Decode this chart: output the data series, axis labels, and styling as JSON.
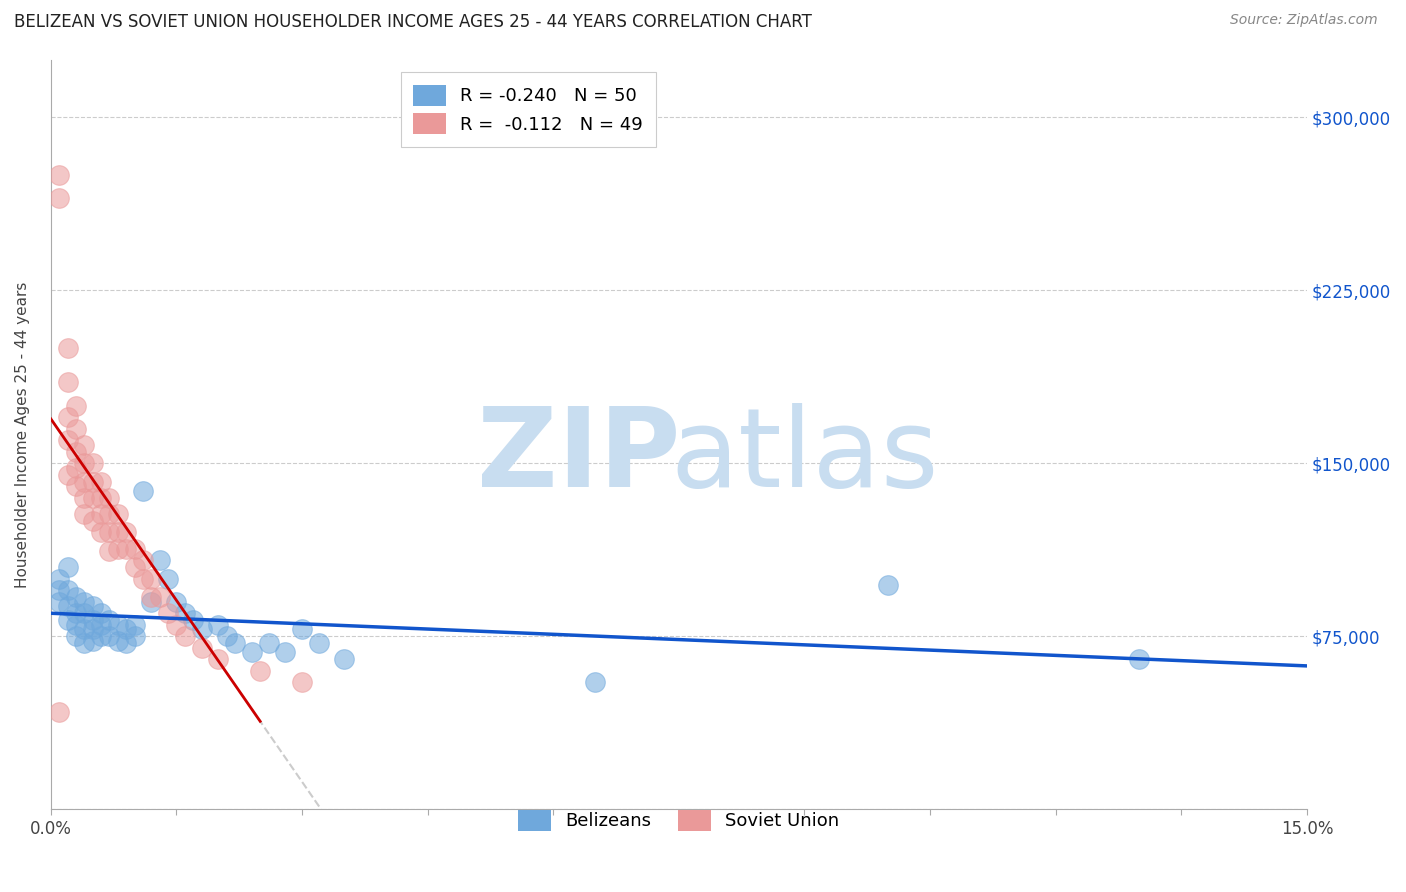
{
  "title": "BELIZEAN VS SOVIET UNION HOUSEHOLDER INCOME AGES 25 - 44 YEARS CORRELATION CHART",
  "source": "Source: ZipAtlas.com",
  "ylabel": "Householder Income Ages 25 - 44 years",
  "xlim": [
    0.0,
    0.15
  ],
  "ylim": [
    0,
    325000
  ],
  "yticks": [
    0,
    75000,
    150000,
    225000,
    300000
  ],
  "ytick_labels": [
    "",
    "$75,000",
    "$150,000",
    "$225,000",
    "$300,000"
  ],
  "xticks": [
    0.0,
    0.015,
    0.03,
    0.045,
    0.06,
    0.075,
    0.09,
    0.105,
    0.12,
    0.135,
    0.15
  ],
  "xtick_labels": [
    "0.0%",
    "",
    "",
    "",
    "",
    "",
    "",
    "",
    "",
    "",
    "15.0%"
  ],
  "belizean_color": "#6fa8dc",
  "soviet_color": "#ea9999",
  "belizean_trendline_color": "#1155cc",
  "soviet_trendline_color": "#cc0000",
  "dashed_line_color": "#cccccc",
  "belizean_R": -0.24,
  "belizean_N": 50,
  "soviet_R": -0.112,
  "soviet_N": 49,
  "background_color": "#ffffff",
  "legend_label_blue": "Belizeans",
  "legend_label_pink": "Soviet Union",
  "belizean_x": [
    0.001,
    0.001,
    0.001,
    0.002,
    0.002,
    0.002,
    0.002,
    0.003,
    0.003,
    0.003,
    0.003,
    0.004,
    0.004,
    0.004,
    0.004,
    0.005,
    0.005,
    0.005,
    0.005,
    0.006,
    0.006,
    0.006,
    0.007,
    0.007,
    0.008,
    0.008,
    0.009,
    0.009,
    0.01,
    0.01,
    0.011,
    0.012,
    0.013,
    0.014,
    0.015,
    0.016,
    0.017,
    0.018,
    0.02,
    0.021,
    0.022,
    0.024,
    0.026,
    0.028,
    0.03,
    0.032,
    0.035,
    0.065,
    0.1,
    0.13
  ],
  "belizean_y": [
    100000,
    95000,
    90000,
    105000,
    95000,
    88000,
    82000,
    92000,
    85000,
    80000,
    75000,
    90000,
    85000,
    78000,
    72000,
    88000,
    82000,
    78000,
    73000,
    85000,
    80000,
    75000,
    82000,
    75000,
    80000,
    73000,
    78000,
    72000,
    80000,
    75000,
    138000,
    90000,
    108000,
    100000,
    90000,
    85000,
    82000,
    78000,
    80000,
    75000,
    72000,
    68000,
    72000,
    68000,
    78000,
    72000,
    65000,
    55000,
    97000,
    65000
  ],
  "soviet_x": [
    0.001,
    0.001,
    0.001,
    0.002,
    0.002,
    0.002,
    0.002,
    0.002,
    0.003,
    0.003,
    0.003,
    0.003,
    0.003,
    0.004,
    0.004,
    0.004,
    0.004,
    0.004,
    0.005,
    0.005,
    0.005,
    0.005,
    0.006,
    0.006,
    0.006,
    0.006,
    0.007,
    0.007,
    0.007,
    0.007,
    0.008,
    0.008,
    0.008,
    0.009,
    0.009,
    0.01,
    0.01,
    0.011,
    0.011,
    0.012,
    0.012,
    0.013,
    0.014,
    0.015,
    0.016,
    0.018,
    0.02,
    0.025,
    0.03
  ],
  "soviet_y": [
    275000,
    265000,
    42000,
    200000,
    185000,
    170000,
    160000,
    145000,
    175000,
    165000,
    155000,
    148000,
    140000,
    158000,
    150000,
    142000,
    135000,
    128000,
    150000,
    142000,
    135000,
    125000,
    142000,
    135000,
    128000,
    120000,
    135000,
    128000,
    120000,
    112000,
    128000,
    120000,
    113000,
    120000,
    113000,
    113000,
    105000,
    108000,
    100000,
    100000,
    92000,
    92000,
    85000,
    80000,
    75000,
    70000,
    65000,
    60000,
    55000
  ]
}
